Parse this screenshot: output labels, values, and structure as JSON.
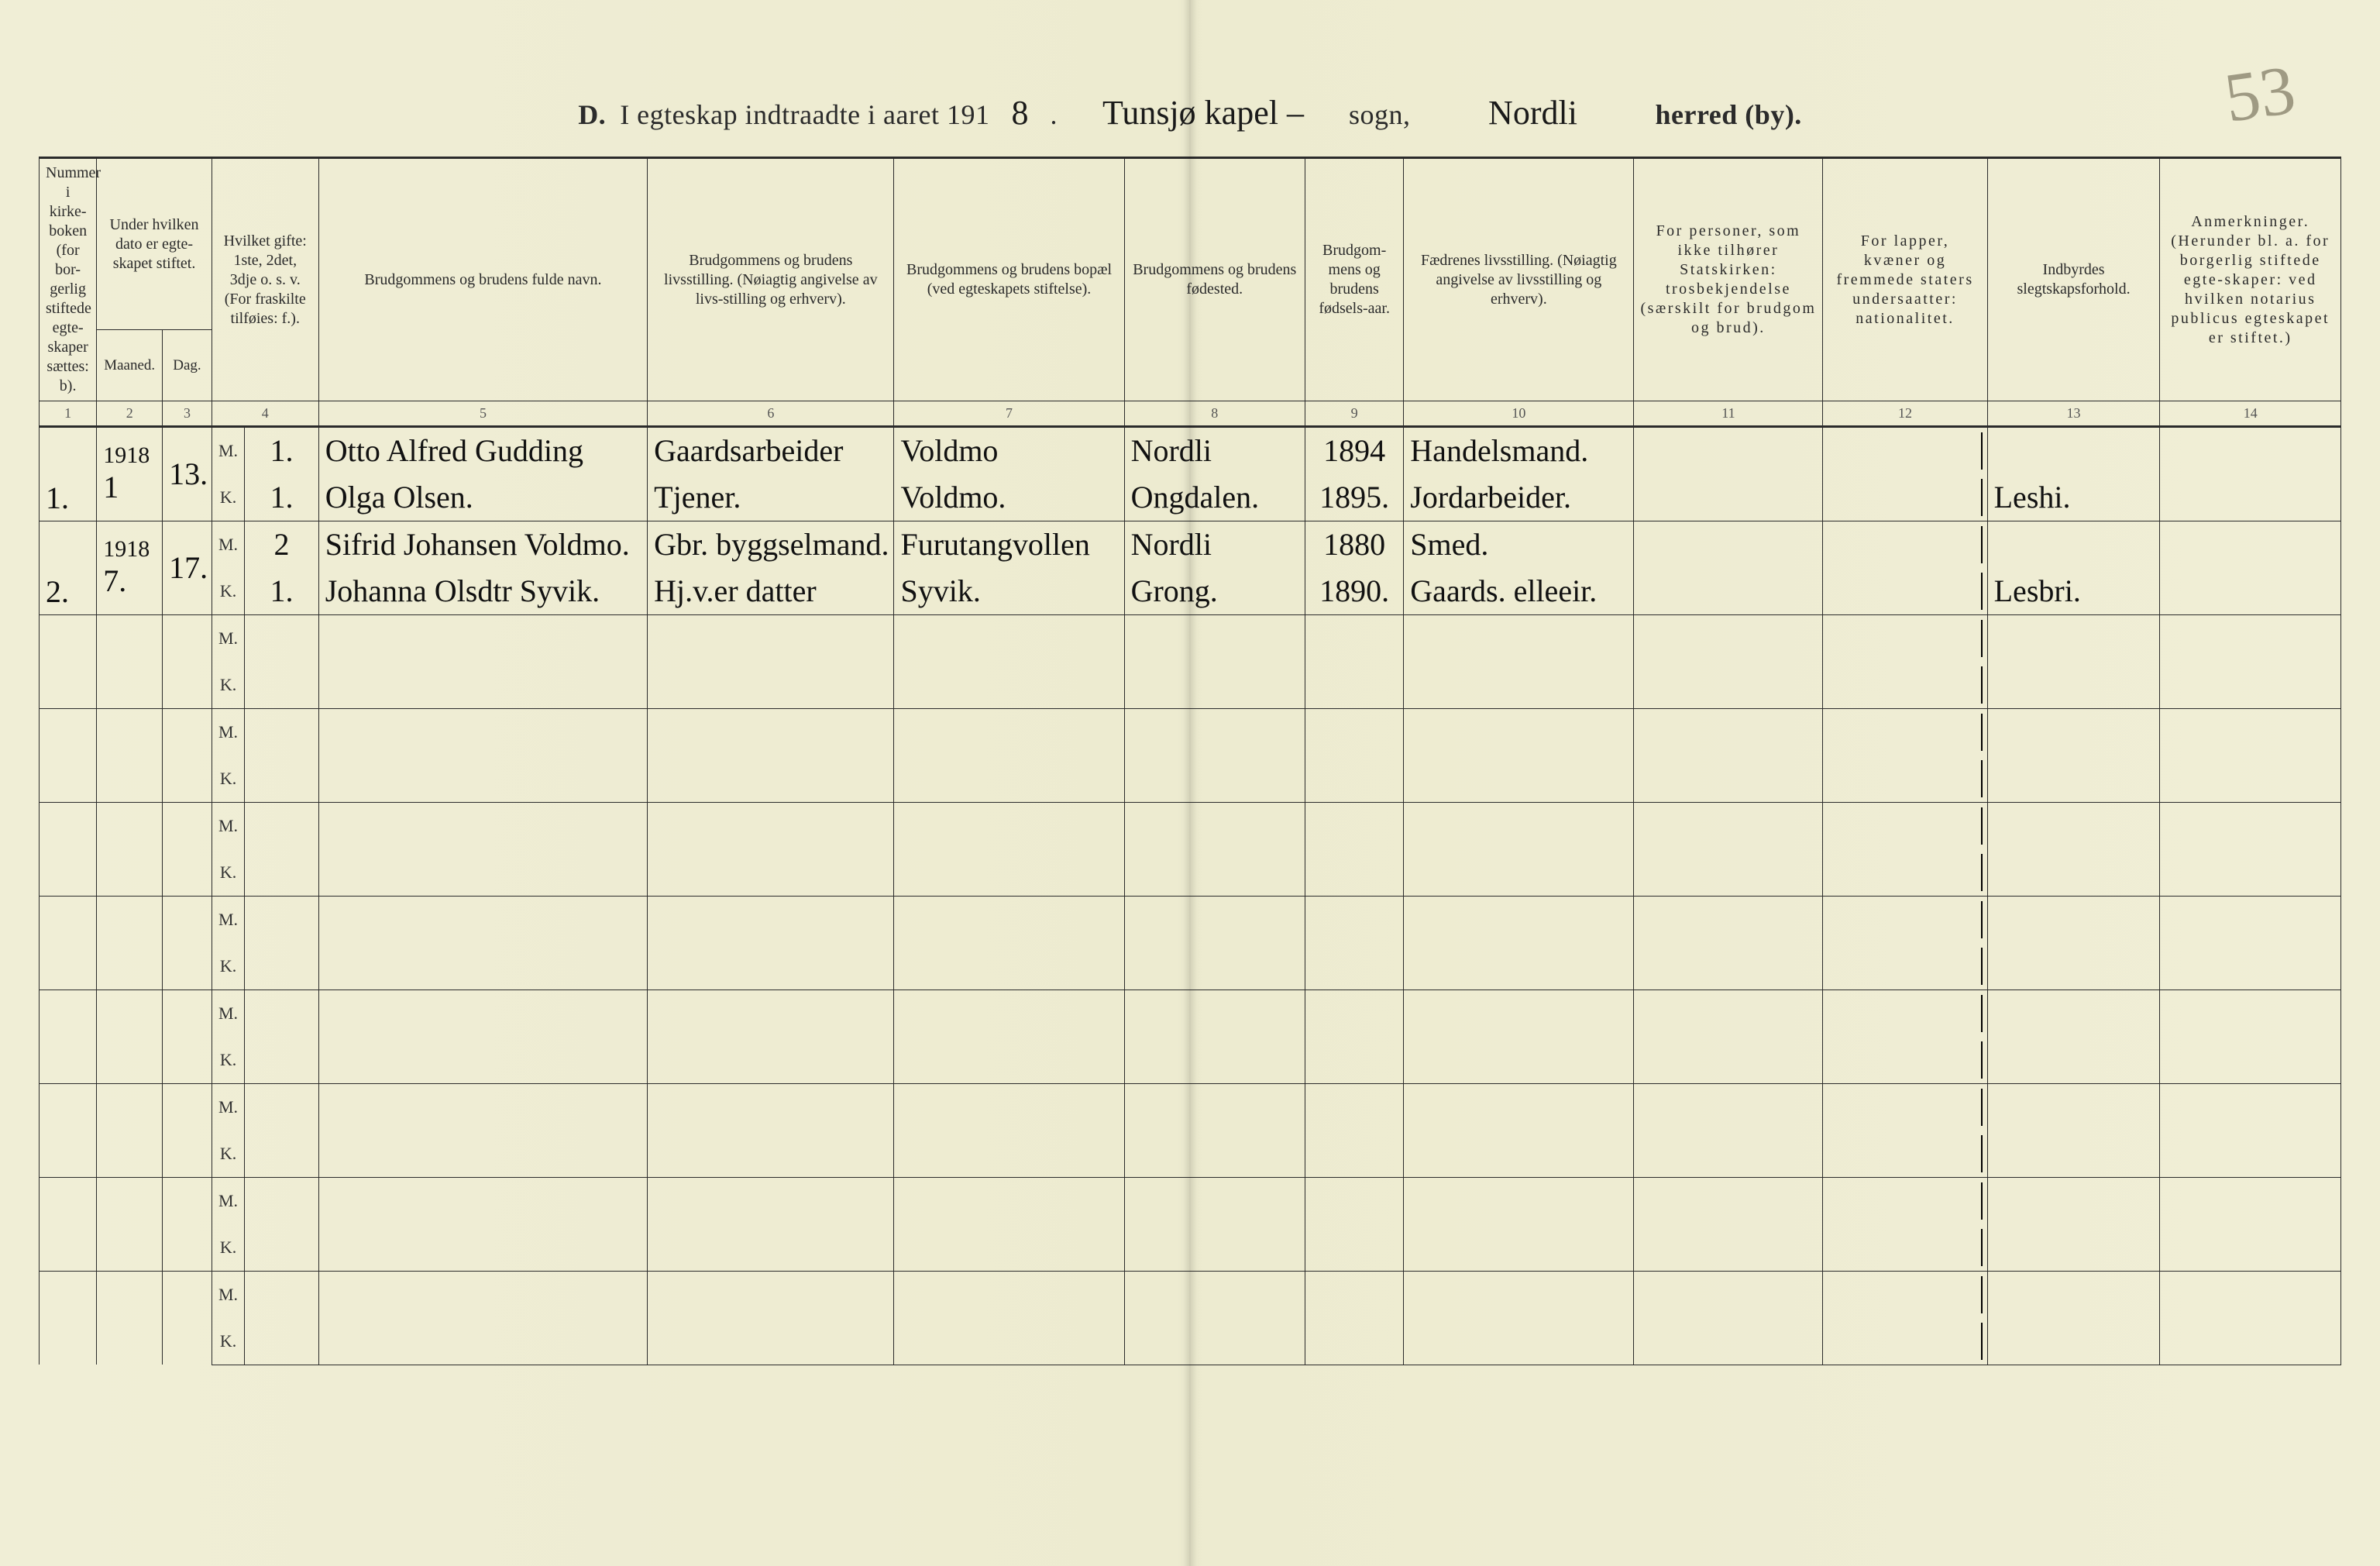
{
  "background_color": "#f0eed6",
  "ink_color": "#2b2b2b",
  "handwriting_color": "#111111",
  "rule_color": "#2b2b2b",
  "crease_shadow": "rgba(0,0,0,0.12)",
  "page_number_hand": "53",
  "title": {
    "prefix_bold": "D.",
    "text_1": "I egteskap indtraadte i aaret 191",
    "year_suffix_hand": "8",
    "dot": ".",
    "sogn_hand": "Tunsjø kapel –",
    "sogn_label": "sogn,",
    "herred_hand": "Nordli",
    "herred_label": "herred (by)."
  },
  "headers": {
    "c1": "Nummer i kirke-boken (for bor-gerlig stiftede egte-skaper sættes: b).",
    "c23_group": "Under hvilken dato er egte-skapet stiftet.",
    "c2": "Maaned.",
    "c3": "Dag.",
    "c4": "Hvilket gifte: 1ste, 2det, 3dje o. s. v. (For fraskilte tilføies: f.).",
    "c5": "Brudgommens og brudens fulde navn.",
    "c6": "Brudgommens og brudens livsstilling. (Nøiagtig angivelse av livs-stilling og erhverv).",
    "c7": "Brudgommens og brudens bopæl (ved egteskapets stiftelse).",
    "c8": "Brudgommens og brudens fødested.",
    "c9": "Brudgom-mens og brudens fødsels-aar.",
    "c10": "Fædrenes livsstilling. (Nøiagtig angivelse av livsstilling og erhverv).",
    "c11": "For personer, som ikke tilhører Statskirken: trosbekjendelse (særskilt for brudgom og brud).",
    "c12": "For lapper, kvæner og fremmede staters undersaatter: nationalitet.",
    "c13": "Indbyrdes slegtskapsforhold.",
    "c14": "Anmerkninger. (Herunder bl. a. for borgerlig stiftede egte-skaper: ved hvilken notarius publicus egteskapet er stiftet.)"
  },
  "colnums": [
    "1",
    "2",
    "3",
    "4",
    "5",
    "6",
    "7",
    "8",
    "9",
    "10",
    "11",
    "12",
    "13",
    "14"
  ],
  "mk_labels": {
    "M": "M.",
    "K": "K."
  },
  "entries": [
    {
      "num": "1.",
      "year": "1918",
      "maaned": "1",
      "dag": "13.",
      "M": {
        "gifte": "1.",
        "navn": "Otto Alfred Gudding",
        "livsstilling": "Gaardsarbeider",
        "bopael": "Voldmo",
        "fodested": "Nordli",
        "aar": "1894",
        "fader": "Handelsmand."
      },
      "K": {
        "gifte": "1.",
        "navn": "Olga Olsen.",
        "livsstilling": "Tjener.",
        "bopael": "Voldmo.",
        "fodested": "Ongdalen.",
        "aar": "1895.",
        "fader": "Jordarbeider.",
        "c13": "Leshi."
      }
    },
    {
      "num": "2.",
      "year": "1918",
      "maaned": "7.",
      "dag": "17.",
      "M": {
        "gifte": "2",
        "navn": "Sifrid Johansen Voldmo.",
        "livsstilling": "Gbr. byggselmand.",
        "bopael": "Furutangvollen",
        "fodested": "Nordli",
        "aar": "1880",
        "fader": "Smed."
      },
      "K": {
        "gifte": "1.",
        "navn": "Johanna Olsdtr Syvik.",
        "livsstilling": "Hj.v.er datter",
        "bopael": "Syvik.",
        "fodested": "Grong.",
        "aar": "1890.",
        "fader": "Gaards. elleeir.",
        "c13": "Lesbri."
      }
    }
  ],
  "empty_pair_count": 8
}
